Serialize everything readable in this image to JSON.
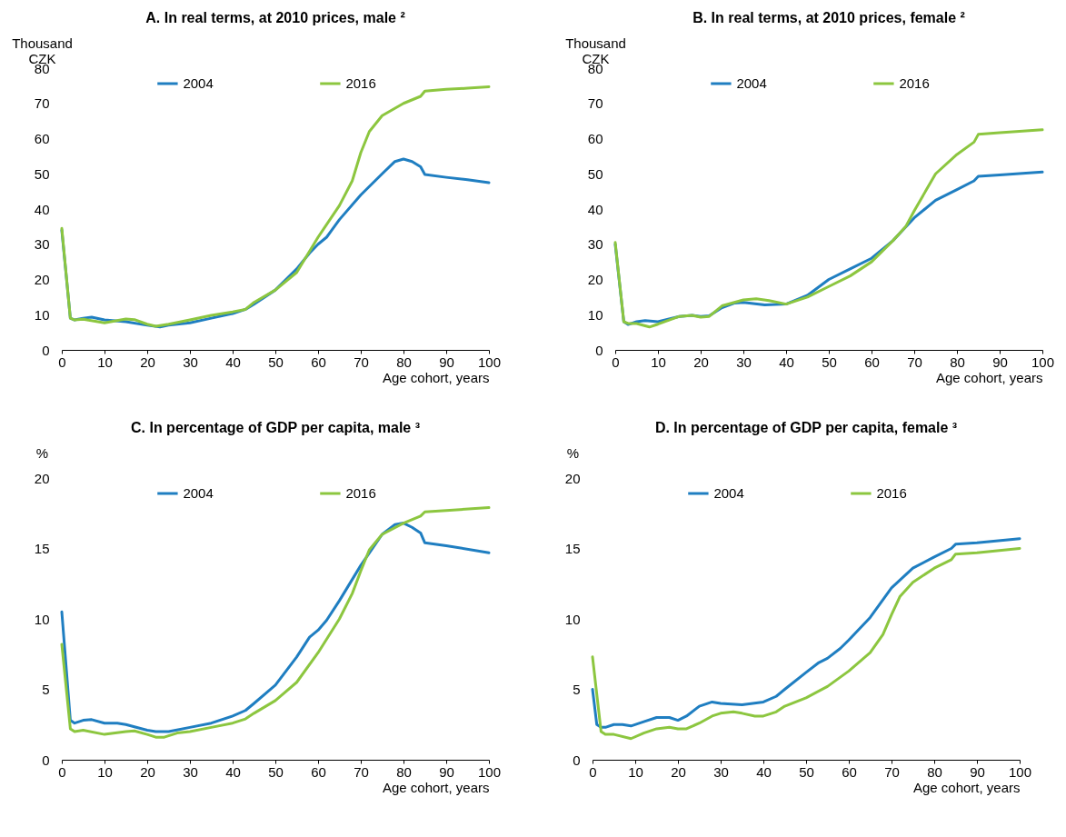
{
  "chart_data": [
    {
      "type": "line",
      "title": "A. In real terms, at 2010 prices, male ²",
      "ylabel": "Thousand CZK",
      "xlabel": "Age cohort, years",
      "xlim": [
        0,
        100
      ],
      "xticks": [
        0,
        10,
        20,
        30,
        40,
        50,
        60,
        70,
        80,
        90,
        100
      ],
      "ylim": [
        0,
        80
      ],
      "yticks": [
        0,
        10,
        20,
        30,
        40,
        50,
        60,
        70,
        80
      ],
      "legend": "top",
      "grid": false,
      "series": [
        {
          "name": "2004",
          "color": "#1f7ec1",
          "x": [
            0,
            2,
            3,
            5,
            7,
            10,
            15,
            20,
            23,
            25,
            30,
            35,
            40,
            43,
            45,
            50,
            55,
            58,
            60,
            62,
            65,
            70,
            75,
            78,
            80,
            82,
            84,
            85,
            90,
            95,
            100
          ],
          "values": [
            34,
            9,
            8.5,
            9,
            9.3,
            8.5,
            8,
            7,
            6.5,
            7,
            7.7,
            9,
            10.3,
            11.5,
            13,
            17,
            23,
            27.5,
            30,
            32,
            37,
            44,
            50,
            53.5,
            54.2,
            53.5,
            52,
            49.8,
            49,
            48.3,
            47.5
          ]
        },
        {
          "name": "2016",
          "color": "#8cc63f",
          "x": [
            0,
            2,
            3,
            5,
            10,
            15,
            17,
            20,
            22,
            25,
            30,
            35,
            40,
            43,
            45,
            50,
            55,
            60,
            65,
            68,
            70,
            72,
            75,
            80,
            84,
            85,
            90,
            95,
            100
          ],
          "values": [
            34.5,
            9,
            8.5,
            8.7,
            7.7,
            8.8,
            8.6,
            7.3,
            6.7,
            7.3,
            8.5,
            9.8,
            10.8,
            11.5,
            13.5,
            17,
            22,
            32,
            41,
            48,
            56,
            62,
            66.5,
            70,
            72,
            73.5,
            74,
            74.3,
            74.7
          ]
        }
      ]
    },
    {
      "type": "line",
      "title": "B. In real terms, at 2010 prices, female ²",
      "ylabel": "Thousand CZK",
      "xlabel": "Age cohort, years",
      "xlim": [
        0,
        100
      ],
      "xticks": [
        0,
        10,
        20,
        30,
        40,
        50,
        60,
        70,
        80,
        90,
        100
      ],
      "ylim": [
        0,
        80
      ],
      "yticks": [
        0,
        10,
        20,
        30,
        40,
        50,
        60,
        70,
        80
      ],
      "legend": "top",
      "grid": false,
      "series": [
        {
          "name": "2004",
          "color": "#1f7ec1",
          "x": [
            0,
            2,
            3,
            5,
            7,
            10,
            15,
            18,
            20,
            22,
            25,
            28,
            30,
            35,
            40,
            45,
            50,
            55,
            60,
            65,
            70,
            75,
            80,
            84,
            85,
            90,
            100
          ],
          "values": [
            30,
            8,
            7.2,
            8,
            8.3,
            8,
            9.5,
            9.8,
            9.5,
            9.7,
            12,
            13.3,
            13.5,
            12.8,
            13,
            15.5,
            20,
            23,
            26,
            31,
            37.5,
            42.5,
            45.5,
            48,
            49.3,
            49.7,
            50.5
          ]
        },
        {
          "name": "2016",
          "color": "#8cc63f",
          "x": [
            0,
            2,
            3,
            5,
            8,
            10,
            15,
            18,
            20,
            22,
            25,
            30,
            33,
            36,
            40,
            45,
            50,
            55,
            60,
            65,
            68,
            70,
            75,
            80,
            84,
            85,
            90,
            100
          ],
          "values": [
            30.5,
            8,
            7.5,
            7.5,
            6.5,
            7.3,
            9.5,
            9.8,
            9.3,
            9.5,
            12.5,
            14.2,
            14.5,
            14,
            13,
            15,
            18,
            21,
            25,
            31,
            35,
            39.5,
            50,
            55.5,
            59,
            61.2,
            61.7,
            62.5
          ]
        }
      ]
    },
    {
      "type": "line",
      "title": "C. In percentage of GDP per capita, male ³",
      "ylabel": "%",
      "xlabel": "Age cohort, years",
      "xlim": [
        0,
        100
      ],
      "xticks": [
        0,
        10,
        20,
        30,
        40,
        50,
        60,
        70,
        80,
        90,
        100
      ],
      "ylim": [
        0,
        20
      ],
      "yticks": [
        0,
        5,
        10,
        15,
        20
      ],
      "legend": "top",
      "grid": false,
      "series": [
        {
          "name": "2004",
          "color": "#1f7ec1",
          "x": [
            0,
            2,
            3,
            5,
            7,
            10,
            13,
            15,
            20,
            22,
            25,
            30,
            35,
            40,
            43,
            45,
            50,
            55,
            58,
            60,
            62,
            65,
            70,
            75,
            78,
            80,
            82,
            84,
            85,
            90,
            100
          ],
          "values": [
            10.5,
            2.8,
            2.6,
            2.8,
            2.85,
            2.6,
            2.6,
            2.5,
            2.1,
            2.0,
            2.0,
            2.3,
            2.6,
            3.1,
            3.5,
            4.0,
            5.3,
            7.3,
            8.7,
            9.2,
            9.9,
            11.3,
            13.8,
            16.0,
            16.7,
            16.8,
            16.5,
            16.1,
            15.4,
            15.2,
            14.7
          ]
        },
        {
          "name": "2016",
          "color": "#8cc63f",
          "x": [
            0,
            2,
            3,
            5,
            10,
            15,
            17,
            20,
            22,
            24,
            27,
            30,
            35,
            40,
            43,
            45,
            50,
            55,
            60,
            65,
            68,
            70,
            72,
            75,
            80,
            84,
            85,
            90,
            100
          ],
          "values": [
            8.2,
            2.2,
            2.0,
            2.1,
            1.8,
            2.0,
            2.05,
            1.8,
            1.6,
            1.6,
            1.9,
            2.0,
            2.3,
            2.6,
            2.9,
            3.3,
            4.2,
            5.5,
            7.6,
            10.0,
            11.8,
            13.4,
            14.9,
            16.0,
            16.8,
            17.3,
            17.6,
            17.7,
            17.9
          ]
        }
      ]
    },
    {
      "type": "line",
      "title": "D. In percentage of GDP per capita, female ³",
      "ylabel": "%",
      "xlabel": "Age cohort, years",
      "xlim": [
        0,
        100
      ],
      "xticks": [
        0,
        10,
        20,
        30,
        40,
        50,
        60,
        70,
        80,
        90,
        100
      ],
      "ylim": [
        0,
        20
      ],
      "yticks": [
        0,
        5,
        10,
        15,
        20
      ],
      "legend": "top",
      "grid": false,
      "series": [
        {
          "name": "2004",
          "color": "#1f7ec1",
          "x": [
            0,
            1,
            2,
            3,
            5,
            7,
            9,
            12,
            15,
            18,
            20,
            22,
            25,
            28,
            30,
            35,
            40,
            43,
            45,
            50,
            53,
            55,
            58,
            60,
            65,
            70,
            75,
            80,
            84,
            85,
            90,
            100
          ],
          "values": [
            5.0,
            2.5,
            2.3,
            2.3,
            2.5,
            2.5,
            2.4,
            2.7,
            3.0,
            3.0,
            2.8,
            3.1,
            3.8,
            4.1,
            4.0,
            3.9,
            4.1,
            4.5,
            5.0,
            6.2,
            6.9,
            7.2,
            7.9,
            8.5,
            10.1,
            12.2,
            13.6,
            14.4,
            15.0,
            15.3,
            15.4,
            15.7
          ]
        },
        {
          "name": "2016",
          "color": "#8cc63f",
          "x": [
            0,
            2,
            3,
            5,
            9,
            12,
            15,
            18,
            20,
            22,
            25,
            28,
            30,
            33,
            35,
            38,
            40,
            43,
            45,
            50,
            55,
            60,
            65,
            68,
            70,
            72,
            75,
            80,
            84,
            85,
            90,
            100
          ],
          "values": [
            7.3,
            2.0,
            1.8,
            1.8,
            1.5,
            1.9,
            2.2,
            2.3,
            2.2,
            2.2,
            2.6,
            3.1,
            3.3,
            3.4,
            3.3,
            3.1,
            3.1,
            3.4,
            3.8,
            4.4,
            5.2,
            6.3,
            7.6,
            8.9,
            10.3,
            11.6,
            12.6,
            13.6,
            14.2,
            14.6,
            14.7,
            15.0
          ]
        }
      ]
    }
  ]
}
